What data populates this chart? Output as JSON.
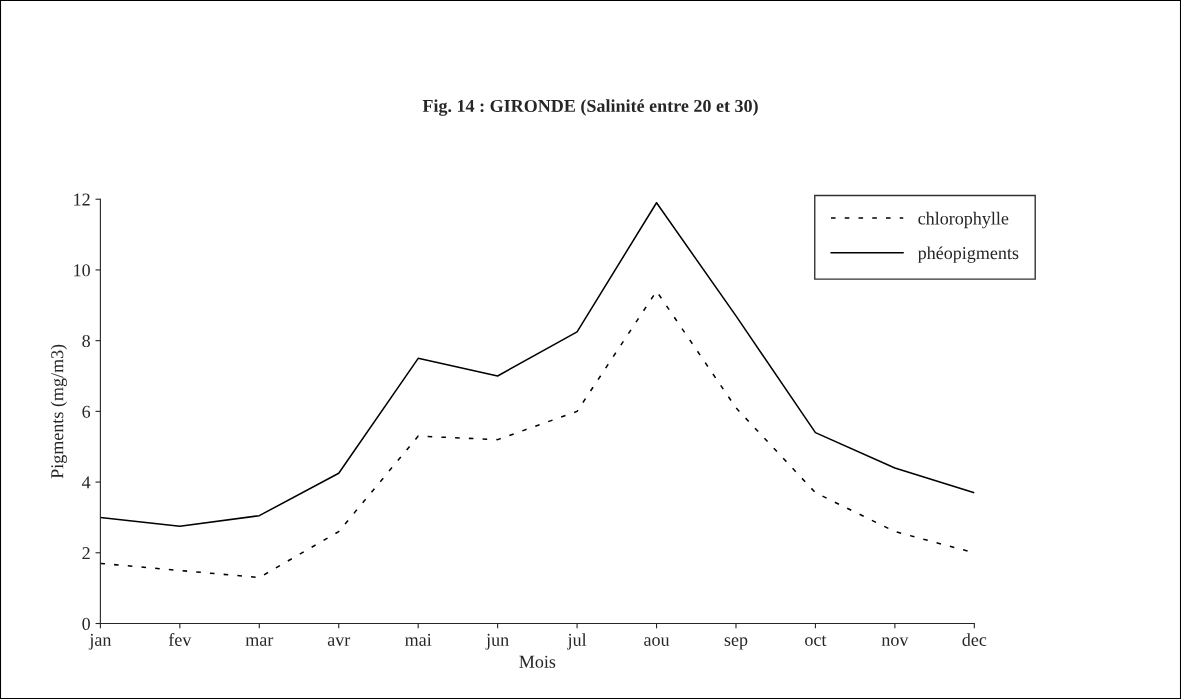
{
  "chart_data": {
    "type": "line",
    "title": "Fig. 14 : GIRONDE (Salinité entre 20 et 30)",
    "xlabel": "Mois",
    "ylabel": "Pigments (mg/m3)",
    "categories": [
      "jan",
      "fev",
      "mar",
      "avr",
      "mai",
      "jun",
      "jul",
      "aou",
      "sep",
      "oct",
      "nov",
      "dec"
    ],
    "series": [
      {
        "name": "chlorophylle",
        "color": "#000000",
        "line_style": "dashed",
        "values": [
          1.7,
          1.5,
          1.3,
          2.6,
          5.3,
          5.2,
          6.0,
          9.4,
          6.1,
          3.7,
          2.6,
          2.0
        ]
      },
      {
        "name": "phéopigments",
        "color": "#000000",
        "line_style": "solid",
        "values": [
          3.0,
          2.75,
          3.05,
          4.25,
          7.5,
          7.0,
          8.25,
          11.9,
          8.7,
          5.4,
          4.4,
          3.7
        ]
      }
    ],
    "ylim": [
      0,
      12
    ],
    "yticks": [
      0,
      2,
      4,
      6,
      8,
      10,
      12
    ],
    "grid": false,
    "legend": "top right",
    "marker": "none"
  }
}
